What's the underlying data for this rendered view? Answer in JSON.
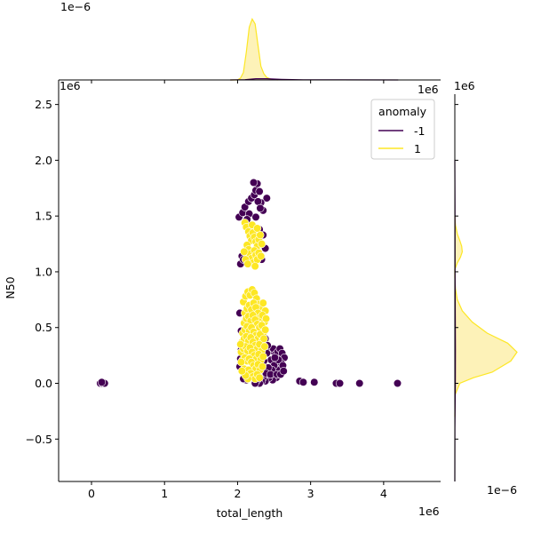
{
  "chart_data": {
    "type": "scatter",
    "xlabel": "total_length",
    "ylabel": "N50",
    "x_offset_label": "1e6",
    "y_offset_label": "1e6",
    "top_marginal_offset_label": "1e−6",
    "right_marginal_offset_label": "1e6",
    "right_marginal_xaxis_offset_label": "1e−6",
    "x_scale_note": "1e6",
    "y_scale_note": "1e6",
    "xlim": [
      -0.45,
      4.78
    ],
    "ylim": [
      -0.88,
      2.72
    ],
    "x_ticks": [
      0,
      1,
      2,
      3,
      4
    ],
    "x_tick_labels": [
      "0",
      "1",
      "2",
      "3",
      "4"
    ],
    "y_ticks": [
      -0.5,
      0.0,
      0.5,
      1.0,
      1.5,
      2.0,
      2.5
    ],
    "y_tick_labels": [
      "−0.5",
      "0.0",
      "0.5",
      "1.0",
      "1.5",
      "2.0",
      "2.5"
    ],
    "legend": {
      "title": "anomaly",
      "placement": "top-right",
      "entries": [
        {
          "label": "-1",
          "color": "#440154"
        },
        {
          "label": "1",
          "color": "#fde725"
        }
      ]
    },
    "colors": {
      "anomaly_neg": "#440154",
      "anomaly_pos": "#fde725",
      "kde_fill": "#fdf2b8",
      "kde_neg_line": "#440154"
    },
    "series": [
      {
        "name": "-1",
        "points": [
          [
            0.12,
            0.0
          ],
          [
            0.15,
            0.0
          ],
          [
            0.18,
            0.0
          ],
          [
            0.14,
            0.01
          ],
          [
            2.85,
            0.02
          ],
          [
            2.9,
            0.01
          ],
          [
            3.05,
            0.01
          ],
          [
            3.35,
            0.0
          ],
          [
            3.4,
            0.0
          ],
          [
            3.67,
            0.0
          ],
          [
            4.19,
            0.0
          ],
          [
            2.02,
            1.49
          ],
          [
            2.07,
            1.53
          ],
          [
            2.1,
            1.58
          ],
          [
            2.15,
            1.63
          ],
          [
            2.19,
            1.66
          ],
          [
            2.23,
            1.69
          ],
          [
            2.25,
            1.73
          ],
          [
            2.27,
            1.79
          ],
          [
            2.3,
            1.72
          ],
          [
            2.35,
            1.55
          ],
          [
            2.4,
            1.66
          ],
          [
            2.32,
            1.62
          ],
          [
            2.22,
            1.8
          ],
          [
            2.28,
            1.63
          ],
          [
            2.16,
            1.52
          ],
          [
            2.13,
            1.47
          ],
          [
            2.25,
            1.49
          ],
          [
            2.31,
            1.57
          ],
          [
            2.38,
            1.21
          ],
          [
            2.04,
            1.07
          ],
          [
            2.06,
            1.14
          ],
          [
            2.08,
            1.11
          ],
          [
            2.2,
            1.16
          ],
          [
            2.33,
            1.11
          ],
          [
            2.35,
            1.33
          ],
          [
            2.3,
            1.38
          ],
          [
            2.03,
            0.63
          ],
          [
            2.1,
            0.55
          ],
          [
            2.05,
            0.47
          ],
          [
            2.38,
            0.4
          ],
          [
            2.44,
            0.29
          ],
          [
            2.49,
            0.31
          ],
          [
            2.52,
            0.26
          ],
          [
            2.55,
            0.28
          ],
          [
            2.58,
            0.31
          ],
          [
            2.61,
            0.27
          ],
          [
            2.64,
            0.23
          ],
          [
            2.6,
            0.18
          ],
          [
            2.57,
            0.12
          ],
          [
            2.53,
            0.05
          ],
          [
            2.48,
            0.03
          ],
          [
            2.43,
            0.05
          ],
          [
            2.38,
            0.02
          ],
          [
            2.35,
            0.05
          ],
          [
            2.33,
            0.02
          ],
          [
            2.3,
            0.0
          ],
          [
            2.27,
            0.03
          ],
          [
            2.24,
            0.0
          ],
          [
            2.46,
            0.21
          ],
          [
            2.5,
            0.16
          ],
          [
            2.56,
            0.21
          ],
          [
            2.62,
            0.16
          ],
          [
            2.51,
            0.23
          ],
          [
            2.47,
            0.12
          ],
          [
            2.42,
            0.14
          ],
          [
            2.39,
            0.09
          ],
          [
            2.45,
            0.08
          ],
          [
            2.54,
            0.08
          ],
          [
            2.59,
            0.08
          ],
          [
            2.63,
            0.11
          ],
          [
            2.4,
            0.27
          ],
          [
            2.36,
            0.2
          ],
          [
            2.41,
            0.34
          ],
          [
            2.05,
            0.3
          ],
          [
            2.03,
            0.15
          ],
          [
            2.04,
            0.22
          ],
          [
            2.12,
            0.03
          ],
          [
            2.08,
            0.04
          ]
        ]
      },
      {
        "name": "1",
        "points": [
          [
            2.1,
            1.44
          ],
          [
            2.12,
            1.4
          ],
          [
            2.15,
            1.36
          ],
          [
            2.17,
            1.32
          ],
          [
            2.19,
            1.28
          ],
          [
            2.21,
            1.35
          ],
          [
            2.23,
            1.31
          ],
          [
            2.25,
            1.27
          ],
          [
            2.27,
            1.23
          ],
          [
            2.29,
            1.29
          ],
          [
            2.31,
            1.33
          ],
          [
            2.13,
            1.24
          ],
          [
            2.15,
            1.2
          ],
          [
            2.17,
            1.16
          ],
          [
            2.19,
            1.12
          ],
          [
            2.21,
            1.08
          ],
          [
            2.23,
            1.19
          ],
          [
            2.25,
            1.15
          ],
          [
            2.27,
            1.11
          ],
          [
            2.29,
            1.17
          ],
          [
            2.11,
            1.11
          ],
          [
            2.33,
            1.25
          ],
          [
            2.2,
            1.42
          ],
          [
            2.27,
            1.39
          ],
          [
            2.09,
            1.18
          ],
          [
            2.14,
            1.07
          ],
          [
            2.24,
            1.05
          ],
          [
            2.32,
            1.14
          ],
          [
            2.08,
            0.73
          ],
          [
            2.11,
            0.78
          ],
          [
            2.14,
            0.82
          ],
          [
            2.17,
            0.79
          ],
          [
            2.2,
            0.84
          ],
          [
            2.23,
            0.81
          ],
          [
            2.26,
            0.76
          ],
          [
            2.29,
            0.71
          ],
          [
            2.32,
            0.68
          ],
          [
            2.35,
            0.72
          ],
          [
            2.38,
            0.65
          ],
          [
            2.1,
            0.63
          ],
          [
            2.13,
            0.67
          ],
          [
            2.16,
            0.7
          ],
          [
            2.19,
            0.66
          ],
          [
            2.22,
            0.72
          ],
          [
            2.25,
            0.68
          ],
          [
            2.28,
            0.63
          ],
          [
            2.31,
            0.59
          ],
          [
            2.34,
            0.61
          ],
          [
            2.37,
            0.55
          ],
          [
            2.09,
            0.54
          ],
          [
            2.12,
            0.58
          ],
          [
            2.15,
            0.6
          ],
          [
            2.18,
            0.56
          ],
          [
            2.21,
            0.61
          ],
          [
            2.24,
            0.57
          ],
          [
            2.27,
            0.53
          ],
          [
            2.3,
            0.5
          ],
          [
            2.33,
            0.52
          ],
          [
            2.36,
            0.46
          ],
          [
            2.07,
            0.45
          ],
          [
            2.1,
            0.48
          ],
          [
            2.13,
            0.51
          ],
          [
            2.16,
            0.47
          ],
          [
            2.19,
            0.5
          ],
          [
            2.22,
            0.46
          ],
          [
            2.25,
            0.43
          ],
          [
            2.28,
            0.4
          ],
          [
            2.31,
            0.44
          ],
          [
            2.34,
            0.38
          ],
          [
            2.06,
            0.37
          ],
          [
            2.09,
            0.4
          ],
          [
            2.12,
            0.42
          ],
          [
            2.15,
            0.38
          ],
          [
            2.18,
            0.41
          ],
          [
            2.21,
            0.37
          ],
          [
            2.24,
            0.34
          ],
          [
            2.27,
            0.31
          ],
          [
            2.3,
            0.35
          ],
          [
            2.33,
            0.29
          ],
          [
            2.05,
            0.28
          ],
          [
            2.08,
            0.31
          ],
          [
            2.11,
            0.33
          ],
          [
            2.14,
            0.29
          ],
          [
            2.17,
            0.32
          ],
          [
            2.2,
            0.28
          ],
          [
            2.23,
            0.25
          ],
          [
            2.26,
            0.22
          ],
          [
            2.29,
            0.26
          ],
          [
            2.32,
            0.21
          ],
          [
            2.35,
            0.24
          ],
          [
            2.07,
            0.21
          ],
          [
            2.1,
            0.23
          ],
          [
            2.13,
            0.2
          ],
          [
            2.16,
            0.22
          ],
          [
            2.19,
            0.19
          ],
          [
            2.22,
            0.16
          ],
          [
            2.25,
            0.13
          ],
          [
            2.28,
            0.17
          ],
          [
            2.31,
            0.12
          ],
          [
            2.34,
            0.15
          ],
          [
            2.09,
            0.13
          ],
          [
            2.12,
            0.1
          ],
          [
            2.15,
            0.12
          ],
          [
            2.18,
            0.09
          ],
          [
            2.21,
            0.06
          ],
          [
            2.24,
            0.04
          ],
          [
            2.27,
            0.08
          ],
          [
            2.3,
            0.05
          ],
          [
            2.14,
            0.04
          ],
          [
            2.11,
            0.07
          ],
          [
            2.06,
            0.11
          ],
          [
            2.04,
            0.35
          ],
          [
            2.37,
            0.33
          ],
          [
            2.36,
            0.4
          ],
          [
            2.39,
            0.58
          ],
          [
            2.38,
            0.48
          ],
          [
            2.05,
            0.19
          ]
        ]
      }
    ],
    "marginal_x_kde": {
      "series_pos": [
        [
          1.9,
          0.0
        ],
        [
          2.0,
          0.0
        ],
        [
          2.04,
          0.03
        ],
        [
          2.08,
          0.12
        ],
        [
          2.12,
          0.45
        ],
        [
          2.16,
          0.85
        ],
        [
          2.2,
          0.98
        ],
        [
          2.24,
          0.9
        ],
        [
          2.28,
          0.55
        ],
        [
          2.32,
          0.22
        ],
        [
          2.36,
          0.1
        ],
        [
          2.4,
          0.04
        ],
        [
          2.46,
          0.01
        ],
        [
          2.55,
          0.0
        ]
      ],
      "series_neg": [
        [
          1.9,
          0.0
        ],
        [
          2.1,
          0.005
        ],
        [
          2.25,
          0.02
        ],
        [
          2.4,
          0.02
        ],
        [
          2.6,
          0.01
        ],
        [
          2.9,
          0.003
        ],
        [
          3.4,
          0.001
        ],
        [
          4.2,
          0.0
        ]
      ]
    },
    "marginal_y_kde": {
      "series_pos": [
        [
          -0.3,
          0.0
        ],
        [
          -0.1,
          0.005
        ],
        [
          0.0,
          0.08
        ],
        [
          0.05,
          0.3
        ],
        [
          0.1,
          0.6
        ],
        [
          0.2,
          0.9
        ],
        [
          0.28,
          1.0
        ],
        [
          0.36,
          0.85
        ],
        [
          0.45,
          0.52
        ],
        [
          0.55,
          0.28
        ],
        [
          0.65,
          0.12
        ],
        [
          0.75,
          0.04
        ],
        [
          0.85,
          0.01
        ],
        [
          0.95,
          0.0
        ],
        [
          1.02,
          0.0
        ],
        [
          1.08,
          0.04
        ],
        [
          1.13,
          0.09
        ],
        [
          1.18,
          0.12
        ],
        [
          1.23,
          0.11
        ],
        [
          1.28,
          0.08
        ],
        [
          1.34,
          0.04
        ],
        [
          1.42,
          0.01
        ],
        [
          1.5,
          0.0
        ]
      ],
      "series_neg": [
        [
          -0.88,
          0.0
        ],
        [
          -0.4,
          0.002
        ],
        [
          0.0,
          0.008
        ],
        [
          0.3,
          0.01
        ],
        [
          1.0,
          0.004
        ],
        [
          1.6,
          0.003
        ],
        [
          2.0,
          0.0
        ]
      ]
    }
  }
}
